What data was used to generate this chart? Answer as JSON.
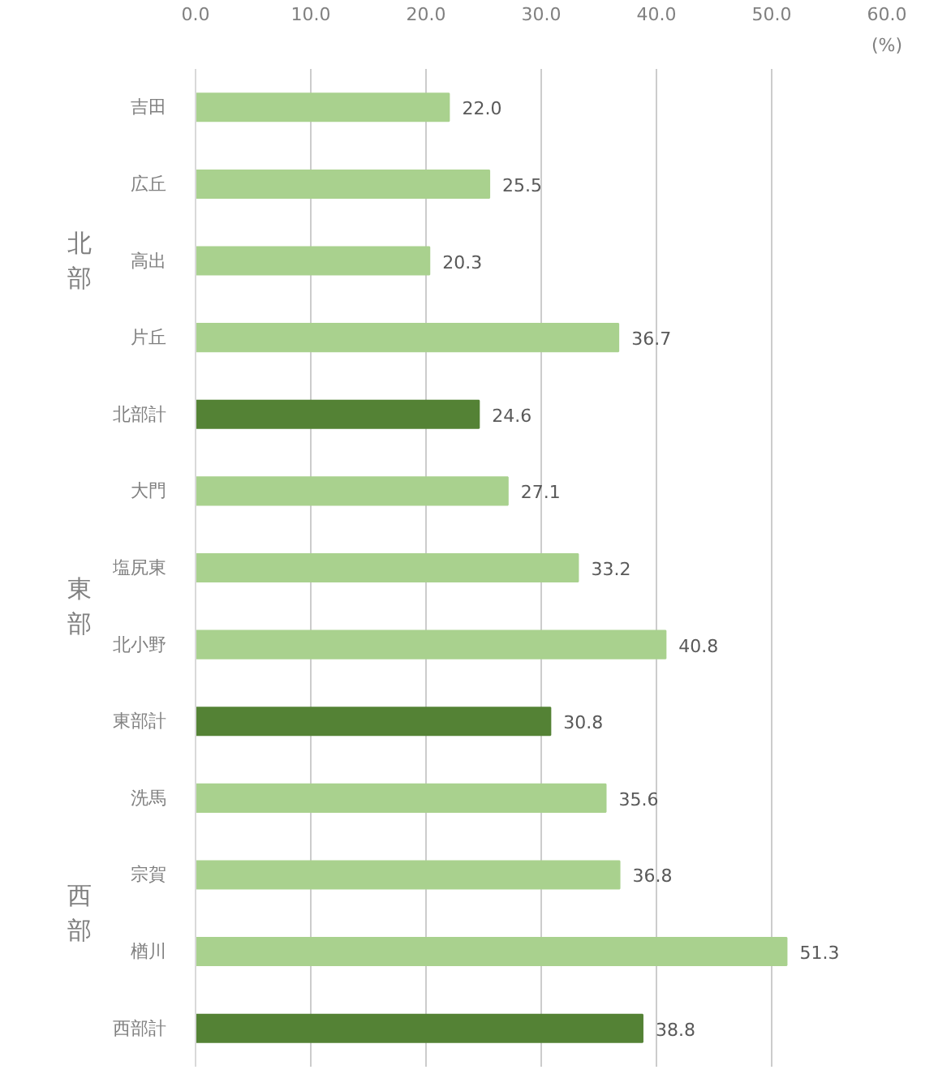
{
  "chart_data": {
    "type": "bar",
    "orientation": "horizontal",
    "xlabel": "(%)",
    "categories": [
      "吉田",
      "広丘",
      "高出",
      "片丘",
      "北部計",
      "大門",
      "塩尻東",
      "北小野",
      "東部計",
      "洗馬",
      "宗賀",
      "楢川",
      "西部計"
    ],
    "values": [
      22.0,
      25.5,
      20.3,
      36.7,
      24.6,
      27.1,
      33.2,
      40.8,
      30.8,
      35.6,
      36.8,
      51.3,
      38.8
    ],
    "colors": [
      "#a9d18e",
      "#a9d18e",
      "#a9d18e",
      "#a9d18e",
      "#548235",
      "#a9d18e",
      "#a9d18e",
      "#a9d18e",
      "#548235",
      "#a9d18e",
      "#a9d18e",
      "#a9d18e",
      "#548235"
    ],
    "xlim": [
      0,
      60
    ],
    "xticks": [
      {
        "value": 0,
        "label": "0.0"
      },
      {
        "value": 10,
        "label": "10.0"
      },
      {
        "value": 20,
        "label": "20.0"
      },
      {
        "value": 30,
        "label": "30.0"
      },
      {
        "value": 40,
        "label": "40.0"
      },
      {
        "value": 50,
        "label": "50.0"
      },
      {
        "value": 60,
        "label": "60.0"
      }
    ],
    "grid": "x",
    "value_labels": [
      "22.0",
      "25.5",
      "20.3",
      "36.7",
      "24.6",
      "27.1",
      "33.2",
      "40.8",
      "30.8",
      "35.6",
      "36.8",
      "51.3",
      "38.8"
    ],
    "annotations": [
      "北部",
      "東部",
      "西部"
    ]
  }
}
